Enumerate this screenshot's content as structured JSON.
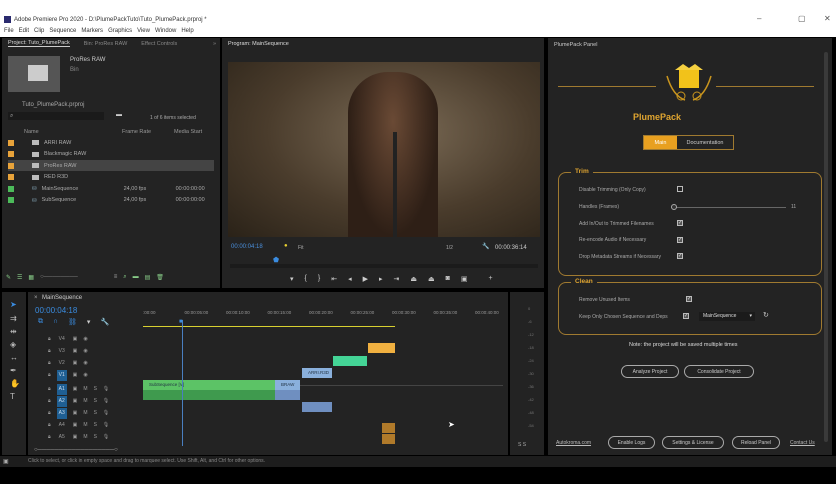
{
  "window": {
    "title": "Adobe Premiere Pro 2020 - D:\\PlumePackTuto\\Tuto_PlumePack.prproj *",
    "minimize": "–",
    "maximize": "▢",
    "close": "✕"
  },
  "menu": [
    "File",
    "Edit",
    "Clip",
    "Sequence",
    "Markers",
    "Graphics",
    "View",
    "Window",
    "Help"
  ],
  "project": {
    "tabs": [
      "Project: Tuto_PlumePack",
      "Bin: ProRes RAW",
      "Effect Controls"
    ],
    "preview_name": "ProRes RAW",
    "preview_type": "Bin",
    "path": "Tuto_PlumePack.prproj",
    "search_placeholder": "",
    "selection": "1 of 6 items selected",
    "columns": [
      "Name",
      "Frame Rate",
      "Media Start"
    ],
    "items": [
      {
        "name": "ARRI RAW",
        "frame_rate": "",
        "media_start": "",
        "color": "#e8a33a",
        "type": "bin"
      },
      {
        "name": "Blackmagic RAW",
        "frame_rate": "",
        "media_start": "",
        "color": "#e8a33a",
        "type": "bin"
      },
      {
        "name": "ProRes RAW",
        "frame_rate": "",
        "media_start": "",
        "color": "#e8a33a",
        "type": "bin",
        "selected": true
      },
      {
        "name": "RED R3D",
        "frame_rate": "",
        "media_start": "",
        "color": "#e8a33a",
        "type": "bin"
      },
      {
        "name": "MainSequence",
        "frame_rate": "24,00 fps",
        "media_start": "00:00:00:00",
        "color": "#4cbb5a",
        "type": "sequence"
      },
      {
        "name": "SubSequence",
        "frame_rate": "24,00 fps",
        "media_start": "00:00:00:00",
        "color": "#4cbb5a",
        "type": "sequence"
      }
    ]
  },
  "program": {
    "tab": "Program: MainSequence",
    "timecode": "00:00:04:18",
    "fit": "Fit",
    "resolution": "1/2",
    "duration": "00:00:36:14"
  },
  "timeline": {
    "sequence": "MainSequence",
    "timecode": "00:00:04:18",
    "ruler": [
      ":00:00",
      "00:00:05:00",
      "00:00:10:00",
      "00:00:15:00",
      "00:00:20:00",
      "00:00:25:00",
      "00:00:30:00",
      "00:00:35:00",
      "00:00:40:00"
    ],
    "video_tracks": [
      "V4",
      "V3",
      "V2",
      "V1"
    ],
    "audio_tracks": [
      "A1",
      "A2",
      "A3",
      "A4",
      "A5"
    ],
    "clip_labels": {
      "v1_main": "SubSequence [V]",
      "v1_b": "BRAW",
      "v2": "ARRI.R3D"
    },
    "meter_labels": [
      "0",
      "-6",
      "-12",
      "-18",
      "-24",
      "-30",
      "-36",
      "-42",
      "-48",
      "-54"
    ],
    "meter_footer": "S S"
  },
  "status": "Click to select, or click in empty space and drag to marquee select. Use Shift, Alt, and Ctrl for other options.",
  "plume": {
    "panel_title": "PlumePack Panel",
    "name": "PlumePack",
    "tabs": [
      "Main",
      "Documentation"
    ],
    "accent": "#e8a020",
    "trim": {
      "title": "Trim",
      "options": [
        {
          "label": "Disable Trimming (Only Copy)",
          "checked": false
        },
        {
          "label": "Handles (Frames)",
          "slider_value": "11"
        },
        {
          "label": "Add In/Out to Trimmed Filenames",
          "checked": true
        },
        {
          "label": "Re-encode Audio if Necessary",
          "checked": true
        },
        {
          "label": "Drop Metadata Streams if Necessary",
          "checked": true
        }
      ]
    },
    "clean": {
      "title": "Clean",
      "options": [
        {
          "label": "Remove Unused Items",
          "checked": true
        },
        {
          "label": "Keep Only Chosen Sequence and Deps",
          "checked": true,
          "sequence": "MainSequence"
        }
      ]
    },
    "note": "Note: the project will be saved multiple times",
    "buttons": [
      "Analyze Project",
      "Consolidate Project"
    ],
    "footer": {
      "site": "Autokroma.com",
      "enable_logs": "Enable Logs",
      "settings": "Settings & License",
      "reload": "Reload Panel",
      "contact": "Contact Us"
    }
  }
}
